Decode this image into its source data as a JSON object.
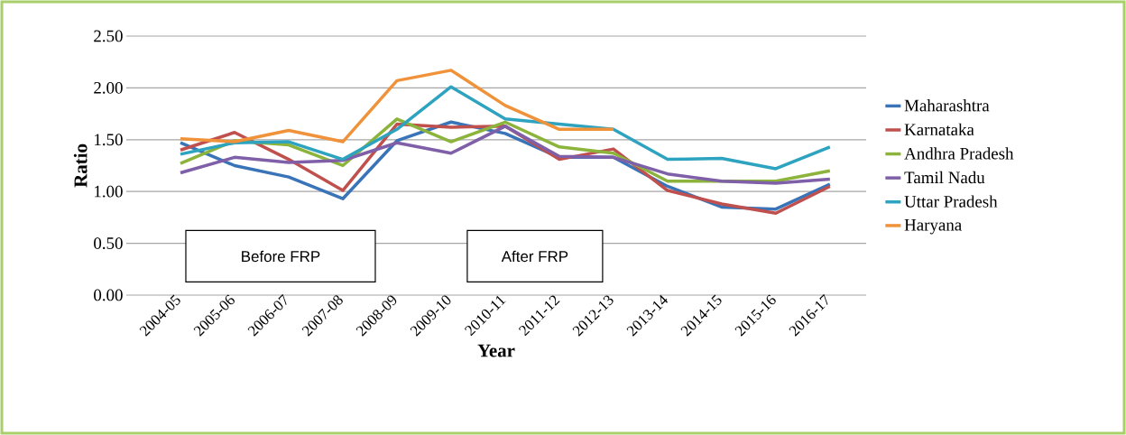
{
  "chart_data": {
    "type": "line",
    "xlabel": "Year",
    "ylabel": "Ratio",
    "categories": [
      "2004-05",
      "2005-06",
      "2006-07",
      "2007-08",
      "2008-09",
      "2009-10",
      "2010-11",
      "2011-12",
      "2012-13",
      "2013-14",
      "2014-15",
      "2015-16",
      "2016-17"
    ],
    "series": [
      {
        "name": "Maharashtra",
        "color": "#3a74b8",
        "values": [
          1.47,
          1.25,
          1.14,
          0.93,
          1.49,
          1.67,
          1.56,
          1.33,
          1.33,
          1.05,
          0.85,
          0.83,
          1.07
        ]
      },
      {
        "name": "Karnataka",
        "color": "#c0504d",
        "values": [
          1.4,
          1.57,
          1.31,
          1.01,
          1.65,
          1.62,
          1.63,
          1.31,
          1.41,
          1.01,
          0.88,
          0.79,
          1.05
        ]
      },
      {
        "name": "Andhra Pradesh",
        "color": "#8cb43c",
        "values": [
          1.27,
          1.49,
          1.45,
          1.25,
          1.7,
          1.48,
          1.67,
          1.43,
          1.37,
          1.1,
          1.1,
          1.1,
          1.2
        ]
      },
      {
        "name": "Tamil Nadu",
        "color": "#7f5fa8",
        "values": [
          1.18,
          1.33,
          1.28,
          1.3,
          1.47,
          1.37,
          1.63,
          1.34,
          1.33,
          1.17,
          1.1,
          1.08,
          1.12
        ]
      },
      {
        "name": "Uttar Pradesh",
        "color": "#2ea3c0",
        "values": [
          1.36,
          1.47,
          1.48,
          1.31,
          1.6,
          2.01,
          1.7,
          1.65,
          1.6,
          1.31,
          1.32,
          1.22,
          1.43
        ]
      },
      {
        "name": "Haryana",
        "color": "#f0923a",
        "values": [
          1.51,
          1.48,
          1.59,
          1.48,
          2.07,
          2.17,
          1.83,
          1.6,
          1.6,
          null,
          null,
          null,
          null
        ]
      }
    ],
    "ylim": [
      0,
      2.5
    ],
    "yticks": [
      {
        "value": 0,
        "label": "0.00"
      },
      {
        "value": 0.5,
        "label": "0.50"
      },
      {
        "value": 1,
        "label": "1.00"
      },
      {
        "value": 1.5,
        "label": "1.50"
      },
      {
        "value": 2,
        "label": "2.00"
      },
      {
        "value": 2.5,
        "label": "2.50"
      }
    ],
    "annotations": [
      "Before FRP",
      "After FRP"
    ],
    "grid": "y",
    "legend": "right",
    "marker": "none",
    "line_style": "solid"
  }
}
